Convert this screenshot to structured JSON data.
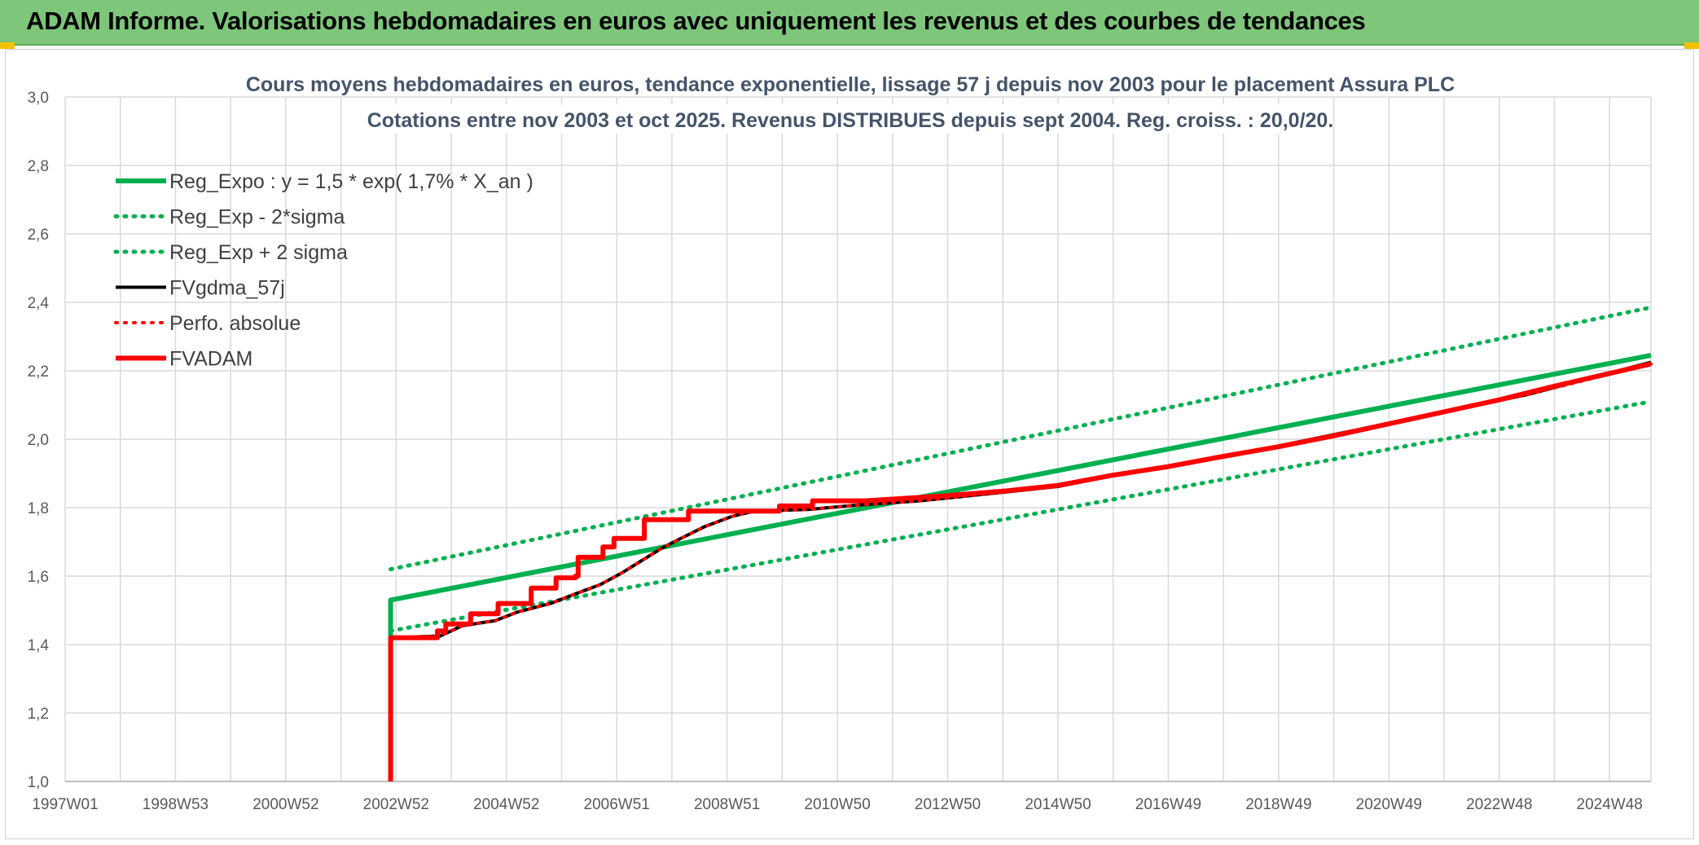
{
  "banner": {
    "title": "ADAM Informe. Valorisations hebdomadaires en euros avec uniquement les revenus et des courbes de tendances"
  },
  "colors": {
    "banner_bg": "#7dc67a",
    "green": "#00b050",
    "red": "#ff0000",
    "black": "#000000",
    "title": "#44546a",
    "grid": "#d9d9d9"
  },
  "chart_data": {
    "type": "line",
    "title_line1": "Cours moyens hebdomadaires en euros, tendance exponentielle, lissage 57 j depuis nov 2003 pour le placement Assura PLC",
    "title_line2": "Cotations entre nov 2003 et oct 2025. Revenus DISTRIBUES depuis sept 2004. Reg. croiss. : 20,0/20.",
    "xlabel": "",
    "ylabel": "",
    "ylim": [
      1.0,
      3.0
    ],
    "xlim": [
      1997.0,
      2025.75
    ],
    "y_ticks": [
      "1,0",
      "1,2",
      "1,4",
      "1,6",
      "1,8",
      "2,0",
      "2,2",
      "2,4",
      "2,6",
      "2,8",
      "3,0"
    ],
    "x_ticks": [
      {
        "label": "1997W01",
        "x": 1997.0
      },
      {
        "label": "1998W53",
        "x": 1999.0
      },
      {
        "label": "2000W52",
        "x": 2001.0
      },
      {
        "label": "2002W52",
        "x": 2003.0
      },
      {
        "label": "2004W52",
        "x": 2005.0
      },
      {
        "label": "2006W51",
        "x": 2007.0
      },
      {
        "label": "2008W51",
        "x": 2009.0
      },
      {
        "label": "2010W50",
        "x": 2011.0
      },
      {
        "label": "2012W50",
        "x": 2013.0
      },
      {
        "label": "2014W50",
        "x": 2015.0
      },
      {
        "label": "2016W49",
        "x": 2017.0
      },
      {
        "label": "2018W49",
        "x": 2019.0
      },
      {
        "label": "2020W49",
        "x": 2021.0
      },
      {
        "label": "2022W48",
        "x": 2023.0
      },
      {
        "label": "2024W48",
        "x": 2025.0
      }
    ],
    "grid": true,
    "legend_position": "top-left",
    "series": [
      {
        "name": "Reg_Expo : y = 1,5 * exp( 1,7% *  X_an )",
        "color": "#00b050",
        "style": "solid",
        "width": 6,
        "points": [
          [
            2002.9,
            1.42
          ],
          [
            2002.9,
            1.53
          ],
          [
            2025.75,
            2.245
          ]
        ]
      },
      {
        "name": "Reg_Exp - 2*sigma",
        "color": "#00b050",
        "style": "dotted",
        "width": 5,
        "points": [
          [
            2002.9,
            1.44
          ],
          [
            2025.75,
            2.11
          ]
        ]
      },
      {
        "name": "Reg_Exp + 2 sigma",
        "color": "#00b050",
        "style": "dotted",
        "width": 5,
        "points": [
          [
            2002.9,
            1.62
          ],
          [
            2025.75,
            2.385
          ]
        ]
      },
      {
        "name": "FVgdma_57j",
        "color": "#000000",
        "style": "solid",
        "width": 4,
        "points": [
          [
            2002.9,
            1.42
          ],
          [
            2003.8,
            1.425
          ],
          [
            2004.2,
            1.455
          ],
          [
            2004.8,
            1.47
          ],
          [
            2005.2,
            1.495
          ],
          [
            2005.8,
            1.52
          ],
          [
            2006.2,
            1.545
          ],
          [
            2006.7,
            1.575
          ],
          [
            2007.1,
            1.61
          ],
          [
            2007.5,
            1.65
          ],
          [
            2007.8,
            1.68
          ],
          [
            2008.1,
            1.705
          ],
          [
            2008.6,
            1.745
          ],
          [
            2009.1,
            1.775
          ],
          [
            2009.5,
            1.79
          ],
          [
            2010.5,
            1.795
          ],
          [
            2011.4,
            1.808
          ],
          [
            2012.5,
            1.82
          ],
          [
            2013.7,
            1.84
          ],
          [
            2015.0,
            1.862
          ],
          [
            2016.2,
            1.9
          ],
          [
            2017.5,
            1.935
          ],
          [
            2019.0,
            1.98
          ],
          [
            2020.5,
            2.03
          ],
          [
            2022.0,
            2.08
          ],
          [
            2023.5,
            2.13
          ],
          [
            2025.75,
            2.225
          ]
        ]
      },
      {
        "name": "Perfo. absolue",
        "color": "#ff0000",
        "style": "dotted",
        "width": 4,
        "points": [
          [
            2002.9,
            1.42
          ],
          [
            2003.8,
            1.425
          ],
          [
            2004.2,
            1.455
          ],
          [
            2004.8,
            1.47
          ],
          [
            2005.2,
            1.495
          ],
          [
            2005.8,
            1.52
          ],
          [
            2006.2,
            1.545
          ],
          [
            2006.7,
            1.575
          ],
          [
            2007.1,
            1.61
          ],
          [
            2007.5,
            1.65
          ],
          [
            2007.8,
            1.68
          ],
          [
            2008.1,
            1.705
          ],
          [
            2008.6,
            1.745
          ],
          [
            2009.1,
            1.775
          ],
          [
            2009.5,
            1.79
          ],
          [
            2010.5,
            1.795
          ],
          [
            2011.4,
            1.808
          ],
          [
            2012.5,
            1.82
          ],
          [
            2013.7,
            1.84
          ],
          [
            2015.0,
            1.862
          ],
          [
            2016.2,
            1.9
          ],
          [
            2017.5,
            1.935
          ],
          [
            2019.0,
            1.98
          ],
          [
            2020.5,
            2.03
          ],
          [
            2022.0,
            2.08
          ],
          [
            2023.5,
            2.13
          ],
          [
            2025.75,
            2.22
          ]
        ]
      },
      {
        "name": "FVADAM",
        "color": "#ff0000",
        "style": "solid",
        "width": 6,
        "points": [
          [
            2002.9,
            1.0
          ],
          [
            2002.9,
            1.42
          ],
          [
            2003.75,
            1.42
          ],
          [
            2003.75,
            1.44
          ],
          [
            2003.9,
            1.44
          ],
          [
            2003.9,
            1.46
          ],
          [
            2004.35,
            1.46
          ],
          [
            2004.35,
            1.49
          ],
          [
            2004.85,
            1.49
          ],
          [
            2004.85,
            1.52
          ],
          [
            2005.45,
            1.52
          ],
          [
            2005.45,
            1.565
          ],
          [
            2005.9,
            1.565
          ],
          [
            2005.9,
            1.595
          ],
          [
            2006.25,
            1.595
          ],
          [
            2006.25,
            1.6
          ],
          [
            2006.3,
            1.6
          ],
          [
            2006.3,
            1.655
          ],
          [
            2006.75,
            1.655
          ],
          [
            2006.75,
            1.685
          ],
          [
            2006.95,
            1.685
          ],
          [
            2006.95,
            1.71
          ],
          [
            2007.5,
            1.71
          ],
          [
            2007.5,
            1.765
          ],
          [
            2008.3,
            1.765
          ],
          [
            2008.3,
            1.79
          ],
          [
            2009.95,
            1.79
          ],
          [
            2009.95,
            1.805
          ],
          [
            2010.55,
            1.805
          ],
          [
            2010.55,
            1.82
          ],
          [
            2011.5,
            1.82
          ],
          [
            2012.0,
            1.825
          ],
          [
            2013.0,
            1.835
          ],
          [
            2014.0,
            1.848
          ],
          [
            2015.0,
            1.865
          ],
          [
            2016.0,
            1.895
          ],
          [
            2017.0,
            1.92
          ],
          [
            2018.0,
            1.95
          ],
          [
            2019.0,
            1.978
          ],
          [
            2020.0,
            2.01
          ],
          [
            2021.0,
            2.045
          ],
          [
            2022.0,
            2.08
          ],
          [
            2023.0,
            2.115
          ],
          [
            2024.0,
            2.155
          ],
          [
            2025.75,
            2.22
          ]
        ]
      }
    ]
  }
}
